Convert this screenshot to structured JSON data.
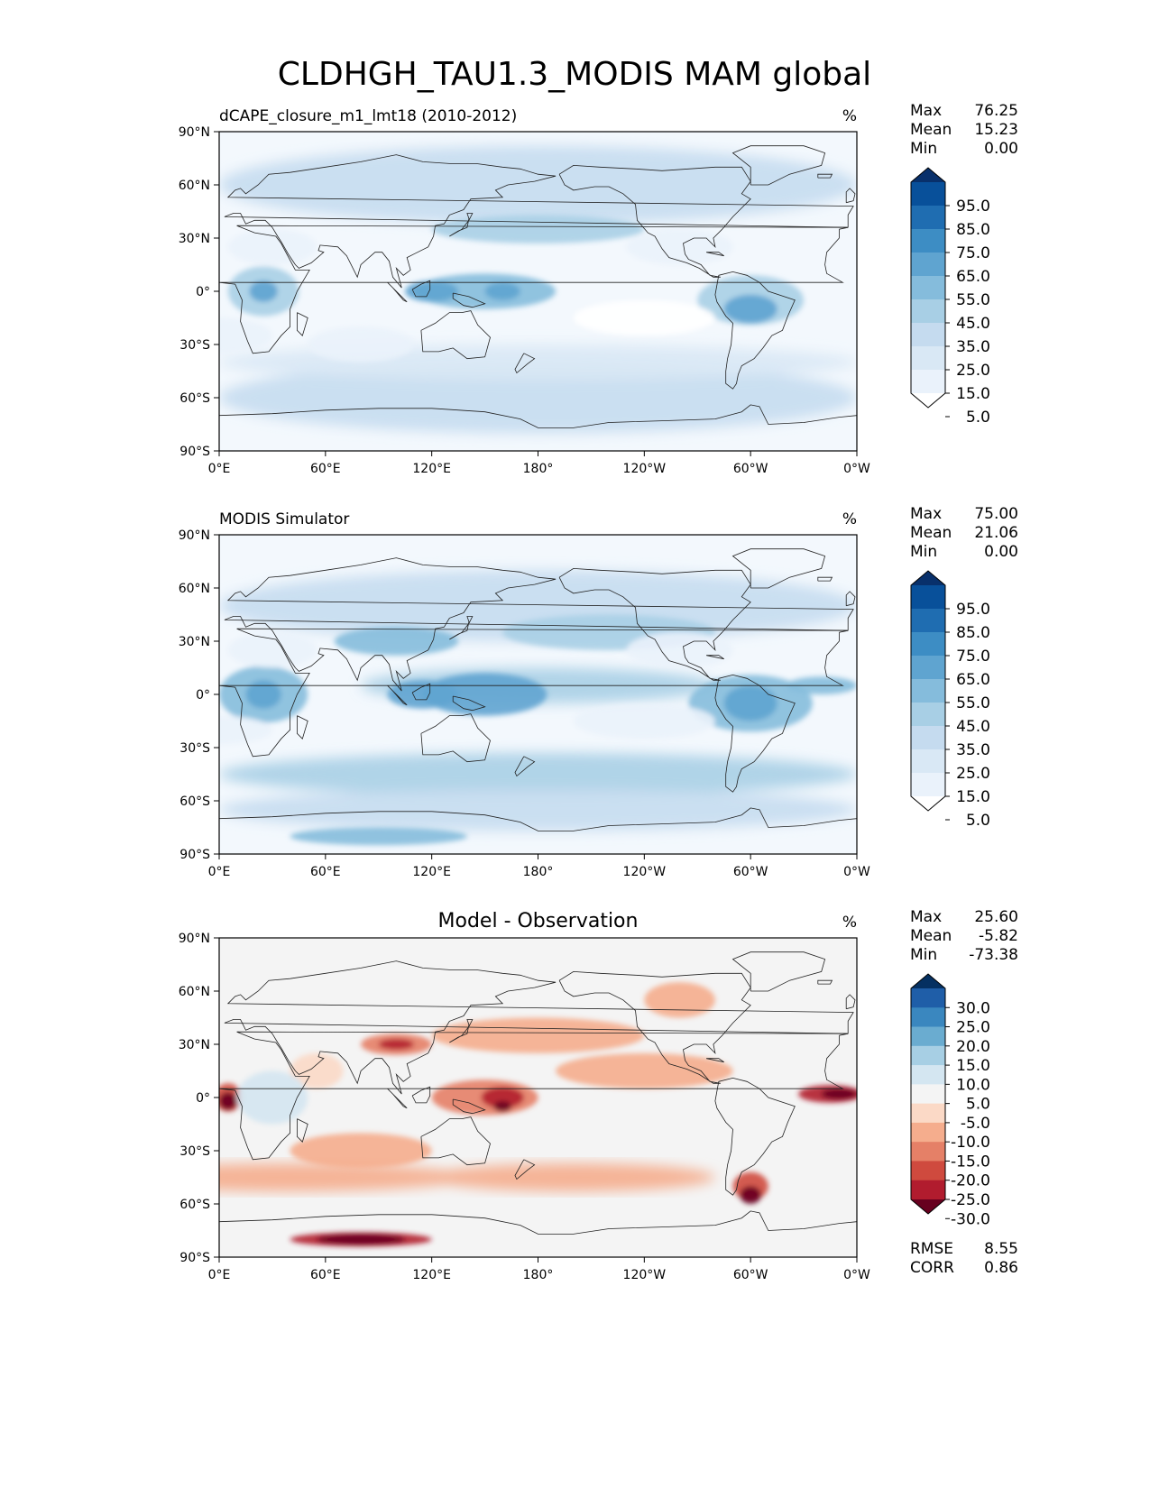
{
  "figure": {
    "title": "CLDHGH_TAU1.3_MODIS MAM global"
  },
  "axes": {
    "lat_ticks": [
      "90°N",
      "60°N",
      "30°N",
      "0°",
      "30°S",
      "60°S",
      "90°S"
    ],
    "lon_ticks": [
      "0°E",
      "60°E",
      "120°E",
      "180°",
      "120°W",
      "60°W",
      "0°W"
    ]
  },
  "panels": [
    {
      "id": "test",
      "title_left": "dCAPE_closure_m1_lmt18 (2010-2012)",
      "title_center": "",
      "units": "%",
      "stats": [
        {
          "label": "Max",
          "value": "76.25"
        },
        {
          "label": "Mean",
          "value": "15.23"
        },
        {
          "label": "Min",
          "value": "0.00"
        }
      ],
      "colorbar": {
        "labels": [
          "95.0",
          "85.0",
          "75.0",
          "65.0",
          "55.0",
          "45.0",
          "35.0",
          "25.0",
          "15.0",
          "5.0"
        ],
        "colors": [
          "#08306b",
          "#08509a",
          "#1f6db1",
          "#3d8dc4",
          "#5fa4d0",
          "#85bcdc",
          "#a8cfe5",
          "#c5dbef",
          "#d9e8f5",
          "#eaf2fb",
          "#ffffff"
        ]
      },
      "field": "test"
    },
    {
      "id": "reference",
      "title_left": "MODIS Simulator",
      "title_center": "",
      "units": "%",
      "stats": [
        {
          "label": "Max",
          "value": "75.00"
        },
        {
          "label": "Mean",
          "value": "21.06"
        },
        {
          "label": "Min",
          "value": "0.00"
        }
      ],
      "colorbar": {
        "labels": [
          "95.0",
          "85.0",
          "75.0",
          "65.0",
          "55.0",
          "45.0",
          "35.0",
          "25.0",
          "15.0",
          "5.0"
        ],
        "colors": [
          "#08306b",
          "#08509a",
          "#1f6db1",
          "#3d8dc4",
          "#5fa4d0",
          "#85bcdc",
          "#a8cfe5",
          "#c5dbef",
          "#d9e8f5",
          "#eaf2fb",
          "#ffffff"
        ]
      },
      "field": "ref"
    },
    {
      "id": "difference",
      "title_left": "",
      "title_center": "Model - Observation",
      "units": "%",
      "stats": [
        {
          "label": "Max",
          "value": "25.60"
        },
        {
          "label": "Mean",
          "value": "-5.82"
        },
        {
          "label": "Min",
          "value": "-73.38"
        }
      ],
      "colorbar": {
        "labels": [
          "30.0",
          "25.0",
          "20.0",
          "15.0",
          "10.0",
          "5.0",
          "-5.0",
          "-10.0",
          "-15.0",
          "-20.0",
          "-25.0",
          "-30.0"
        ],
        "colors": [
          "#053061",
          "#1f5ea8",
          "#3a87bf",
          "#6aacd0",
          "#a7cfe4",
          "#d4e6f1",
          "#f4f4f4",
          "#fbd9c6",
          "#f5ad8d",
          "#e58067",
          "#cf4a3e",
          "#b11c2e",
          "#67001f"
        ]
      },
      "bottom_stats": [
        {
          "label": "RMSE",
          "value": "8.55"
        },
        {
          "label": "CORR",
          "value": "0.86"
        }
      ],
      "field": "diff"
    }
  ]
}
